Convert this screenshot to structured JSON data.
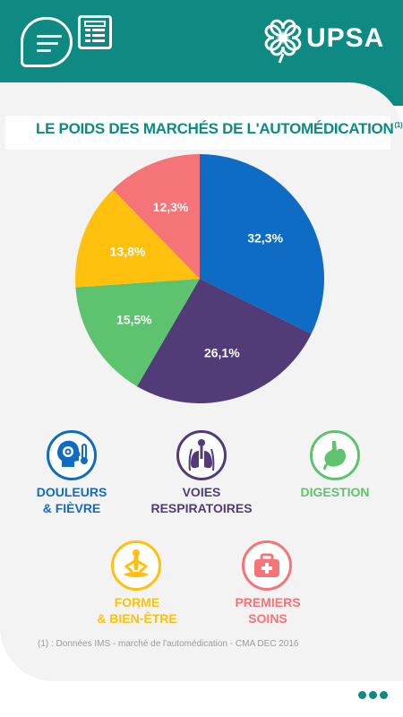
{
  "app": {
    "brand": "UPSA"
  },
  "header": {
    "menu_icon": "menu-icon",
    "document_icon": "document-icon"
  },
  "title": {
    "text": "LE POIDS DES MARCHÉS DE L'AUTOMÉDICATION",
    "note_marker": "(1)"
  },
  "chart_data": {
    "type": "pie",
    "title": "LE POIDS DES MARCHÉS DE L'AUTOMÉDICATION",
    "unit": "%",
    "slices": [
      {
        "label": "DOULEURS & FIÈVRE",
        "value": 32.3,
        "display": "32,3%",
        "color": "#0e6cc4"
      },
      {
        "label": "VOIES RESPIRATOIRES",
        "value": 26.1,
        "display": "26,1%",
        "color": "#513c77"
      },
      {
        "label": "DIGESTION",
        "value": 15.5,
        "display": "15,5%",
        "color": "#5ec36f"
      },
      {
        "label": "FORME & BIEN-ÊTRE",
        "value": 13.8,
        "display": "13,8%",
        "color": "#ffc10e"
      },
      {
        "label": "PREMIERS SOINS",
        "value": 12.3,
        "display": "12,3%",
        "color": "#f47477"
      }
    ]
  },
  "categories": [
    {
      "label": "DOULEURS\n& FIÈVRE",
      "color": "#0e6cc4",
      "icon": "head-thermometer-icon"
    },
    {
      "label": "VOIES\nRESPIRATOIRES",
      "color": "#513c77",
      "icon": "lungs-icon"
    },
    {
      "label": "DIGESTION",
      "color": "#5ec36f",
      "icon": "stomach-icon"
    },
    {
      "label": "FORME\n& BIEN-ÊTRE",
      "color": "#ffc10e",
      "icon": "meditation-icon"
    },
    {
      "label": "PREMIERS\nSOINS",
      "color": "#f47477",
      "icon": "first-aid-kit-icon"
    }
  ],
  "footnote": "(1) : Données IMS - marché de l'automédication - CMA DEC 2016"
}
